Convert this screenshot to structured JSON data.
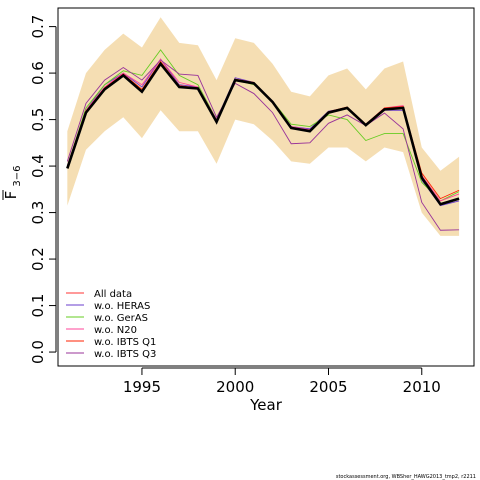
{
  "footer": "stockassessment.org, WBSher_HAWG2013_tmp2, r2211",
  "chart_data": {
    "type": "line",
    "xlabel": "Year",
    "ylabel_main": "F",
    "ylabel_sub": "3−6",
    "xlim": [
      1990.5,
      2012.8
    ],
    "ylim": [
      -0.03,
      0.74
    ],
    "x_ticks": [
      1995,
      2000,
      2005,
      2010
    ],
    "y_ticks": [
      0.0,
      0.1,
      0.2,
      0.3,
      0.4,
      0.5,
      0.6,
      0.7
    ],
    "legend_position": "bottom-left",
    "band": {
      "fill": "#f5deb3",
      "x": [
        1991,
        1992,
        1993,
        1994,
        1995,
        1996,
        1997,
        1998,
        1999,
        2000,
        2001,
        2002,
        2003,
        2004,
        2005,
        2006,
        2007,
        2008,
        2009,
        2010,
        2011,
        2012
      ],
      "lower": [
        0.315,
        0.435,
        0.475,
        0.505,
        0.46,
        0.52,
        0.475,
        0.475,
        0.405,
        0.5,
        0.49,
        0.455,
        0.41,
        0.405,
        0.44,
        0.44,
        0.41,
        0.44,
        0.43,
        0.3,
        0.25,
        0.25
      ],
      "upper": [
        0.475,
        0.6,
        0.65,
        0.685,
        0.655,
        0.72,
        0.665,
        0.66,
        0.585,
        0.675,
        0.665,
        0.62,
        0.56,
        0.55,
        0.595,
        0.61,
        0.565,
        0.61,
        0.625,
        0.44,
        0.39,
        0.42
      ]
    },
    "x": [
      1991,
      1992,
      1993,
      1994,
      1995,
      1996,
      1997,
      1998,
      1999,
      2000,
      2001,
      2002,
      2003,
      2004,
      2005,
      2006,
      2007,
      2008,
      2009,
      2010,
      2011,
      2012
    ],
    "main_line": {
      "color": "#000000",
      "values": [
        0.395,
        0.515,
        0.565,
        0.595,
        0.56,
        0.62,
        0.57,
        0.567,
        0.495,
        0.585,
        0.578,
        0.538,
        0.482,
        0.475,
        0.515,
        0.525,
        0.488,
        0.522,
        0.525,
        0.375,
        0.318,
        0.33
      ]
    },
    "series": [
      {
        "name": "All data",
        "color": "#ff3333",
        "values": [
          0.395,
          0.515,
          0.565,
          0.595,
          0.56,
          0.62,
          0.57,
          0.567,
          0.495,
          0.585,
          0.578,
          0.538,
          0.482,
          0.475,
          0.515,
          0.525,
          0.488,
          0.522,
          0.525,
          0.375,
          0.318,
          0.33
        ]
      },
      {
        "name": "w.o. HERAS",
        "color": "#6a3dcd",
        "values": [
          0.4,
          0.52,
          0.575,
          0.6,
          0.57,
          0.63,
          0.575,
          0.57,
          0.5,
          0.59,
          0.58,
          0.54,
          0.485,
          0.48,
          0.518,
          0.525,
          0.49,
          0.52,
          0.52,
          0.37,
          0.315,
          0.325
        ]
      },
      {
        "name": "w.o. GerAS",
        "color": "#66cc22",
        "values": [
          0.4,
          0.525,
          0.575,
          0.605,
          0.595,
          0.65,
          0.595,
          0.575,
          0.5,
          0.585,
          0.575,
          0.54,
          0.49,
          0.485,
          0.51,
          0.5,
          0.455,
          0.47,
          0.47,
          0.365,
          0.325,
          0.345
        ]
      },
      {
        "name": "w.o. N20",
        "color": "#ff4499",
        "values": [
          0.4,
          0.52,
          0.57,
          0.6,
          0.575,
          0.63,
          0.58,
          0.57,
          0.5,
          0.585,
          0.58,
          0.54,
          0.485,
          0.478,
          0.515,
          0.525,
          0.49,
          0.525,
          0.53,
          0.38,
          0.325,
          0.34
        ]
      },
      {
        "name": "w.o. IBTS Q1",
        "color": "#ff2200",
        "values": [
          0.398,
          0.518,
          0.568,
          0.598,
          0.565,
          0.625,
          0.573,
          0.568,
          0.497,
          0.587,
          0.58,
          0.54,
          0.483,
          0.477,
          0.517,
          0.527,
          0.49,
          0.525,
          0.528,
          0.385,
          0.33,
          0.348
        ]
      },
      {
        "name": "w.o. IBTS Q3",
        "color": "#993399",
        "values": [
          0.41,
          0.535,
          0.585,
          0.612,
          0.585,
          0.628,
          0.598,
          0.595,
          0.505,
          0.578,
          0.556,
          0.515,
          0.448,
          0.45,
          0.492,
          0.51,
          0.487,
          0.514,
          0.48,
          0.322,
          0.262,
          0.263
        ]
      }
    ]
  }
}
